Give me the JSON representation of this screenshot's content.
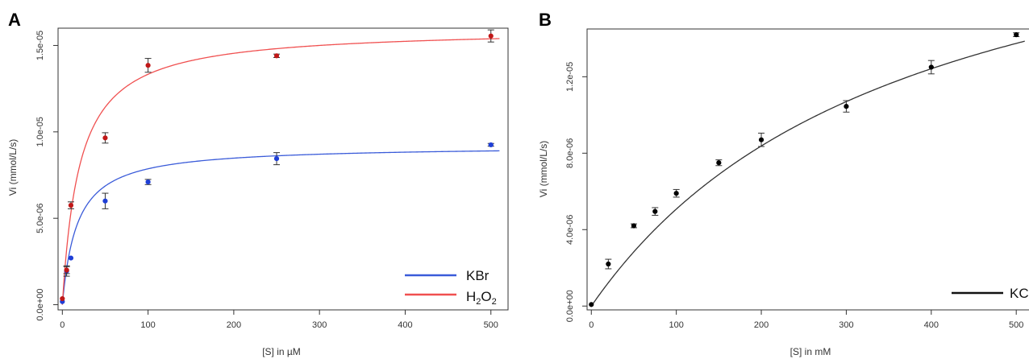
{
  "chart_data": [
    {
      "panel_label": "A",
      "type": "scatter",
      "xlabel": "[S] in µM",
      "ylabel": "Vi (mmol/L/s)",
      "xlim": [
        -5,
        520
      ],
      "ylim": [
        -3e-07,
        1.6e-05
      ],
      "xticks": [
        0,
        100,
        200,
        300,
        400,
        500
      ],
      "xtick_labels": [
        "0",
        "100",
        "200",
        "300",
        "400",
        "500"
      ],
      "yticks": [
        0,
        5e-06,
        1e-05,
        1.5e-05
      ],
      "ytick_labels": [
        "0.0e+00",
        "5.0e-06",
        "1.0e-05",
        "1.5e-05"
      ],
      "grid": false,
      "legend_position": "bottom-right",
      "series": [
        {
          "name": "KBr",
          "color": "#1f3fd6",
          "fit_color": "#3a5bd9",
          "fit": {
            "model": "michaelis-menten",
            "vmax": 9.2e-06,
            "km": 17
          },
          "points": [
            {
              "x": 0,
              "y": 1.8e-07,
              "err": 0
            },
            {
              "x": 5,
              "y": 1.95e-06,
              "err": 3e-07
            },
            {
              "x": 10,
              "y": 2.7e-06,
              "err": 0
            },
            {
              "x": 50,
              "y": 6e-06,
              "err": 4.5e-07
            },
            {
              "x": 100,
              "y": 7.1e-06,
              "err": 1.5e-07
            },
            {
              "x": 250,
              "y": 8.45e-06,
              "err": 3.5e-07
            },
            {
              "x": 500,
              "y": 9.25e-06,
              "err": 8e-08
            }
          ]
        },
        {
          "name": "H2O2",
          "name_main": "H",
          "name_sub1": "2",
          "name_mid": "O",
          "name_sub2": "2",
          "color": "#c01818",
          "fit_color": "#f05050",
          "fit": {
            "model": "michaelis-menten",
            "vmax": 1.6e-05,
            "km": 20
          },
          "points": [
            {
              "x": 0,
              "y": 3.5e-07,
              "err": 0
            },
            {
              "x": 5,
              "y": 2e-06,
              "err": 2e-07
            },
            {
              "x": 10,
              "y": 5.75e-06,
              "err": 2e-07
            },
            {
              "x": 50,
              "y": 9.65e-06,
              "err": 3e-07
            },
            {
              "x": 100,
              "y": 1.385e-05,
              "err": 4e-07
            },
            {
              "x": 250,
              "y": 1.44e-05,
              "err": 1e-07
            },
            {
              "x": 500,
              "y": 1.555e-05,
              "err": 3.5e-07
            }
          ]
        }
      ]
    },
    {
      "panel_label": "B",
      "type": "scatter",
      "xlabel": "[S] in mM",
      "ylabel": "Vi (mmol/L/s)",
      "xlim": [
        -5,
        515
      ],
      "ylim": [
        -2e-07,
        1.45e-05
      ],
      "xticks": [
        0,
        100,
        200,
        300,
        400,
        500
      ],
      "xtick_labels": [
        "0",
        "100",
        "200",
        "300",
        "400",
        "500"
      ],
      "yticks": [
        0,
        4e-06,
        8e-06,
        1.2e-05
      ],
      "ytick_labels": [
        "0.0e+00",
        "4.0e-06",
        "8.0e-06",
        "1.2e-05"
      ],
      "grid": false,
      "legend_position": "bottom-right",
      "legend_text": "KC",
      "series": [
        {
          "name": "KC",
          "color": "#000000",
          "fit_color": "#333333",
          "fit": {
            "model": "michaelis-menten",
            "vmax": 2.4e-05,
            "km": 373
          },
          "points": [
            {
              "x": 0,
              "y": 8e-08,
              "err": 0
            },
            {
              "x": 20,
              "y": 2.2e-06,
              "err": 2.5e-07
            },
            {
              "x": 50,
              "y": 4.2e-06,
              "err": 1e-07
            },
            {
              "x": 75,
              "y": 4.95e-06,
              "err": 2e-07
            },
            {
              "x": 100,
              "y": 5.9e-06,
              "err": 2e-07
            },
            {
              "x": 150,
              "y": 7.5e-06,
              "err": 1.5e-07
            },
            {
              "x": 200,
              "y": 8.7e-06,
              "err": 3.5e-07
            },
            {
              "x": 300,
              "y": 1.045e-05,
              "err": 3e-07
            },
            {
              "x": 400,
              "y": 1.25e-05,
              "err": 3.5e-07
            },
            {
              "x": 500,
              "y": 1.42e-05,
              "err": 1e-07
            }
          ]
        }
      ]
    }
  ]
}
